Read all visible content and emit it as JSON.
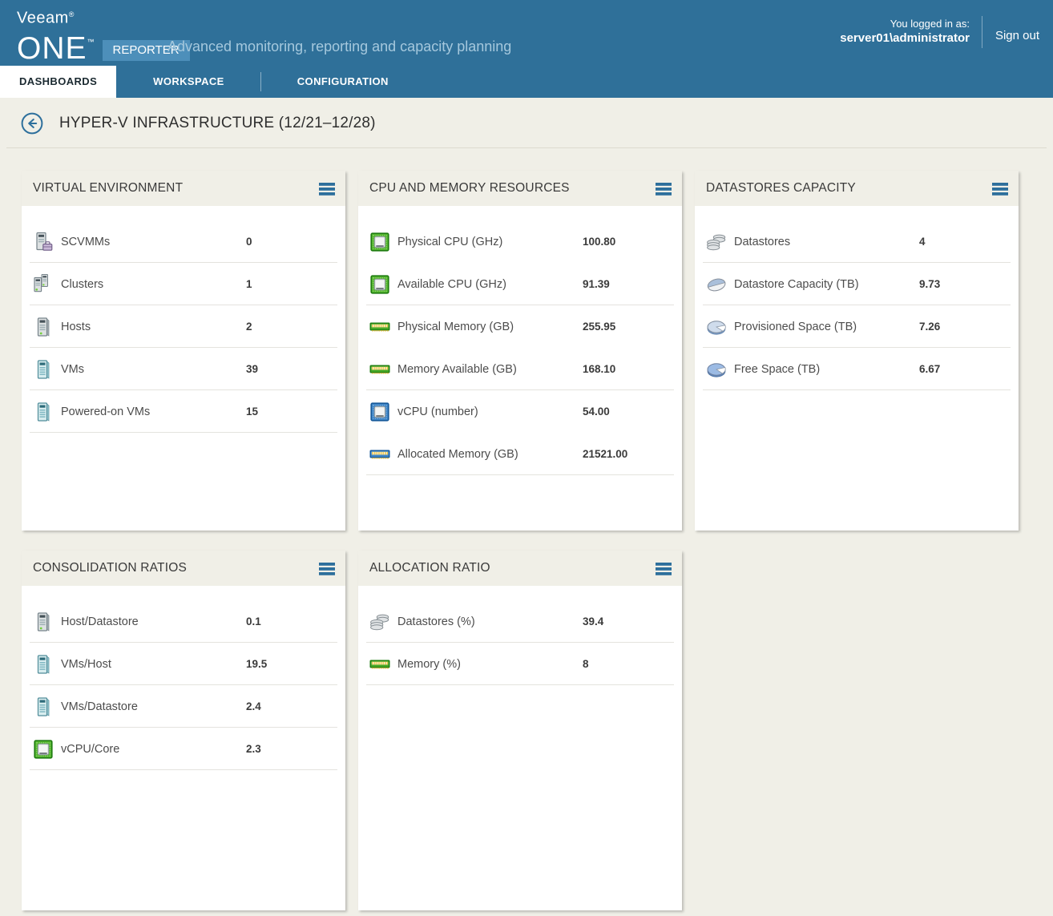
{
  "header": {
    "logo": {
      "brand": "Veeam",
      "reg": "®",
      "product": "ONE",
      "tm": "™",
      "badge": "REPORTER"
    },
    "tagline": "Advanced monitoring, reporting and capacity planning",
    "login_label": "You logged in as:",
    "login_user": "server01\\administrator",
    "signout": "Sign out"
  },
  "nav": {
    "tabs": [
      {
        "label": "DASHBOARDS",
        "active": true
      },
      {
        "label": "WORKSPACE",
        "active": false
      },
      {
        "label": "CONFIGURATION",
        "active": false
      }
    ]
  },
  "page": {
    "title": "HYPER-V INFRASTRUCTURE (12/21–12/28)"
  },
  "cards": [
    {
      "title": "VIRTUAL ENVIRONMENT",
      "rows": [
        {
          "icon": "scvmm-server-icon",
          "label": "SCVMMs",
          "value": "0",
          "divider": true
        },
        {
          "icon": "cluster-servers-icon",
          "label": "Clusters",
          "value": "1",
          "divider": true
        },
        {
          "icon": "host-server-icon",
          "label": "Hosts",
          "value": "2",
          "divider": true
        },
        {
          "icon": "vm-server-icon",
          "label": "VMs",
          "value": "39",
          "divider": true
        },
        {
          "icon": "vm-server-icon",
          "label": "Powered-on VMs",
          "value": "15",
          "divider": true
        }
      ]
    },
    {
      "title": "CPU AND MEMORY RESOURCES",
      "rows": [
        {
          "icon": "cpu-green-icon",
          "label": "Physical CPU (GHz)",
          "value": "100.80",
          "divider": false
        },
        {
          "icon": "cpu-green-icon",
          "label": "Available CPU (GHz)",
          "value": "91.39",
          "divider": true
        },
        {
          "icon": "ram-green-icon",
          "label": "Physical Memory (GB)",
          "value": "255.95",
          "divider": false
        },
        {
          "icon": "ram-green-icon",
          "label": "Memory Available (GB)",
          "value": "168.10",
          "divider": true
        },
        {
          "icon": "cpu-blue-icon",
          "label": "vCPU (number)",
          "value": "54.00",
          "divider": false
        },
        {
          "icon": "ram-blue-icon",
          "label": "Allocated Memory (GB)",
          "value": "21521.00",
          "divider": true
        }
      ]
    },
    {
      "title": "DATASTORES CAPACITY",
      "rows": [
        {
          "icon": "datastore-stack-icon",
          "label": "Datastores",
          "value": "4",
          "divider": true
        },
        {
          "icon": "disk-capacity-icon",
          "label": "Datastore Capacity (TB)",
          "value": "9.73",
          "divider": true
        },
        {
          "icon": "pie-provisioned-icon",
          "label": "Provisioned Space (TB)",
          "value": "7.26",
          "divider": true
        },
        {
          "icon": "pie-free-icon",
          "label": "Free Space (TB)",
          "value": "6.67",
          "divider": true
        }
      ]
    },
    {
      "title": "CONSOLIDATION RATIOS",
      "rows": [
        {
          "icon": "host-server-icon",
          "label": "Host/Datastore",
          "value": "0.1",
          "divider": true
        },
        {
          "icon": "vm-server-icon",
          "label": "VMs/Host",
          "value": "19.5",
          "divider": true
        },
        {
          "icon": "vm-server-icon",
          "label": "VMs/Datastore",
          "value": "2.4",
          "divider": true
        },
        {
          "icon": "cpu-green-icon",
          "label": "vCPU/Core",
          "value": "2.3",
          "divider": true
        }
      ]
    },
    {
      "title": "ALLOCATION RATIO",
      "rows": [
        {
          "icon": "datastore-stack-icon",
          "label": "Datastores (%)",
          "value": "39.4",
          "divider": true
        },
        {
          "icon": "ram-green-icon",
          "label": "Memory (%)",
          "value": "8",
          "divider": true
        }
      ]
    }
  ],
  "colors": {
    "header_bg": "#2f7099",
    "badge_bg": "#4d8fba",
    "accent_blue": "#2d6f9c",
    "page_bg": "#f0efe7",
    "card_bg": "#ffffff",
    "cpu_green": "#53b42e",
    "chip_blue": "#3e85c6"
  }
}
